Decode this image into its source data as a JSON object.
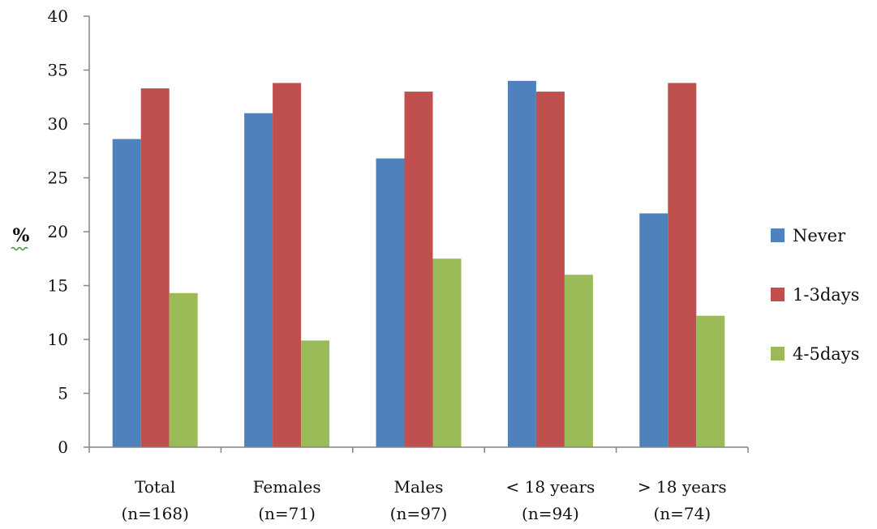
{
  "chart_data": {
    "type": "bar",
    "ylabel": "%",
    "ylim": [
      0,
      40
    ],
    "yticks": [
      0,
      5,
      10,
      15,
      20,
      25,
      30,
      35,
      40
    ],
    "grid": false,
    "legend_position": "right",
    "categories": [
      [
        "Total",
        "(n=168)"
      ],
      [
        "Females",
        "(n=71)"
      ],
      [
        "Males",
        "(n=97)"
      ],
      [
        "< 18  years",
        "(n=94)"
      ],
      [
        "> 18 years",
        "(n=74)"
      ]
    ],
    "series": [
      {
        "name": "Never",
        "color": "#4F81BD",
        "values": [
          28.6,
          31.0,
          26.8,
          34.0,
          21.7
        ]
      },
      {
        "name": "1-3days",
        "color": "#C0504D",
        "values": [
          33.3,
          33.8,
          33.0,
          33.0,
          33.8
        ]
      },
      {
        "name": "4-5days",
        "color": "#9BBB59",
        "values": [
          14.3,
          9.9,
          17.5,
          16.0,
          12.2
        ]
      }
    ]
  }
}
